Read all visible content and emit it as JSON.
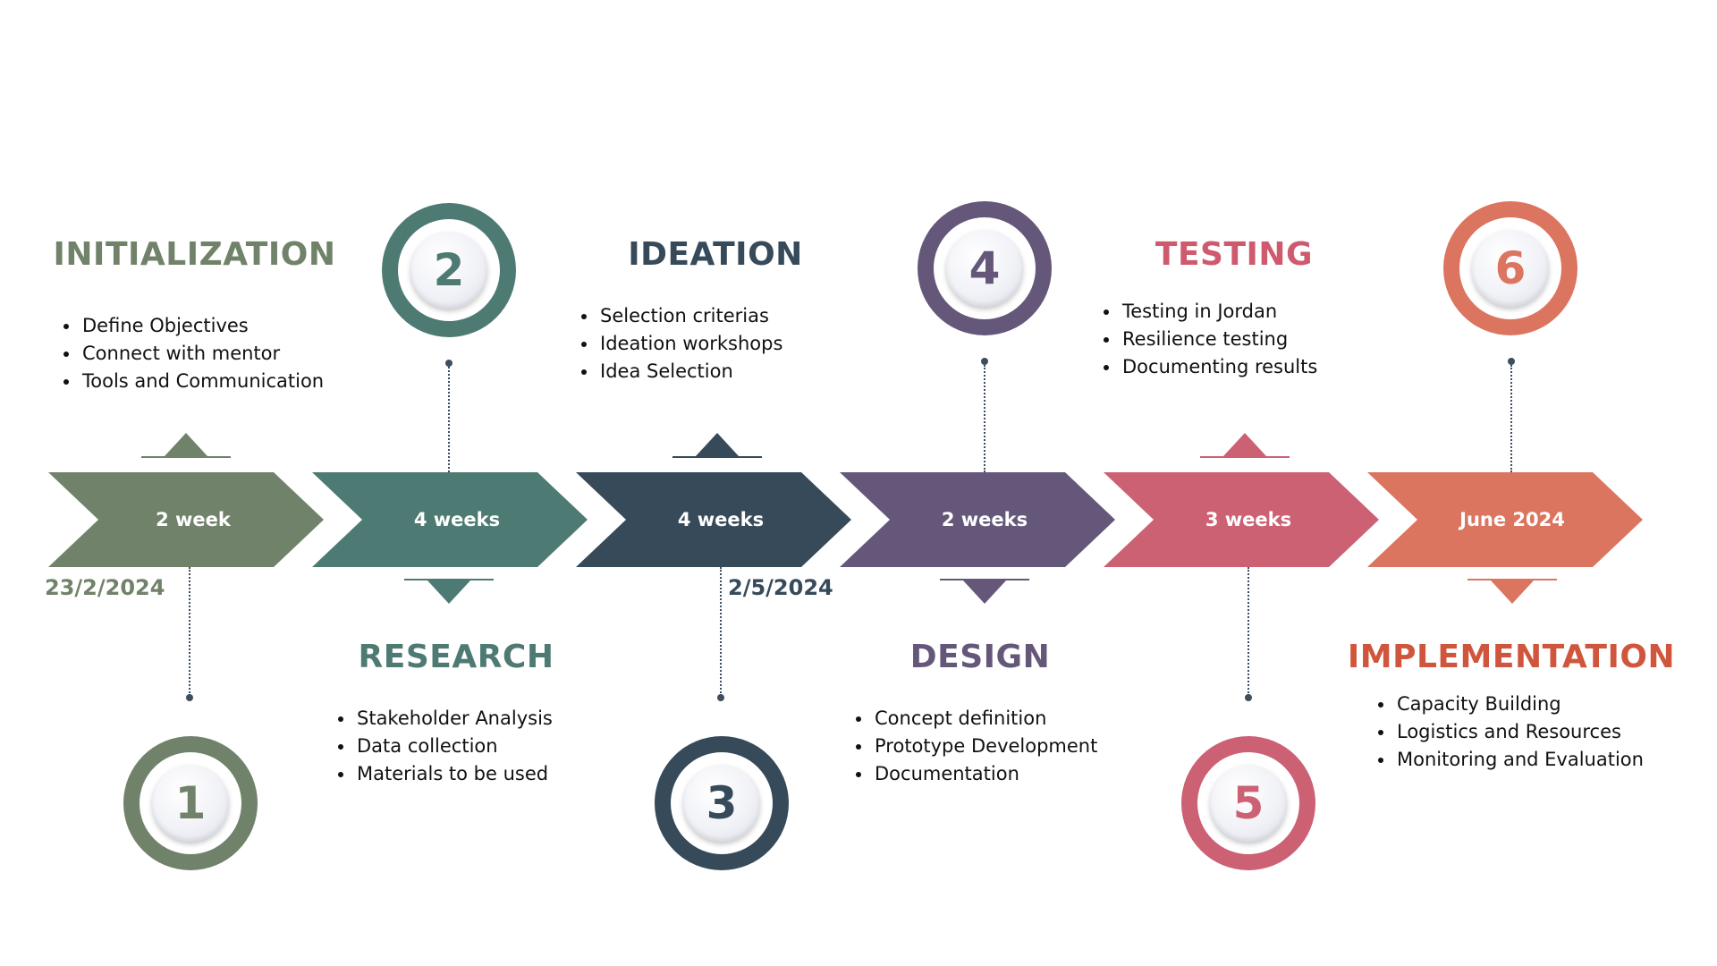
{
  "phases": [
    {
      "number": "1",
      "title": "INITIALIZATION",
      "duration": "2 week",
      "color": "#71826a",
      "items": [
        "Define Objectives",
        "Connect with mentor",
        "Tools and Communication"
      ]
    },
    {
      "number": "2",
      "title": "RESEARCH",
      "duration": "4 weeks",
      "color": "#4e7a74",
      "items": [
        "Stakeholder Analysis",
        "Data collection",
        "Materials to be used"
      ]
    },
    {
      "number": "3",
      "title": "IDEATION",
      "duration": "4 weeks",
      "color": "#364a5a",
      "items": [
        "Selection criterias",
        "Ideation workshops",
        "Idea Selection"
      ]
    },
    {
      "number": "4",
      "title": "DESIGN",
      "duration": "2 weeks",
      "color": "#65577a",
      "items": [
        "Concept definition",
        "Prototype Development",
        "Documentation"
      ]
    },
    {
      "number": "5",
      "title": "TESTING",
      "duration": "3 weeks",
      "color": "#cc6174",
      "items": [
        "Testing in Jordan",
        "Resilience testing",
        "Documenting results"
      ]
    },
    {
      "number": "6",
      "title": "IMPLEMENTATION",
      "duration": "June 2024",
      "color": "#dc7560",
      "items": [
        "Capacity Building",
        "Logistics and Resources",
        "Monitoring and Evaluation"
      ]
    }
  ],
  "dates": {
    "start": "23/2/2024",
    "mid": "2/5/2024"
  },
  "title_colors": {
    "implementation": "#d0553d",
    "testing": "#cf5a6e"
  }
}
